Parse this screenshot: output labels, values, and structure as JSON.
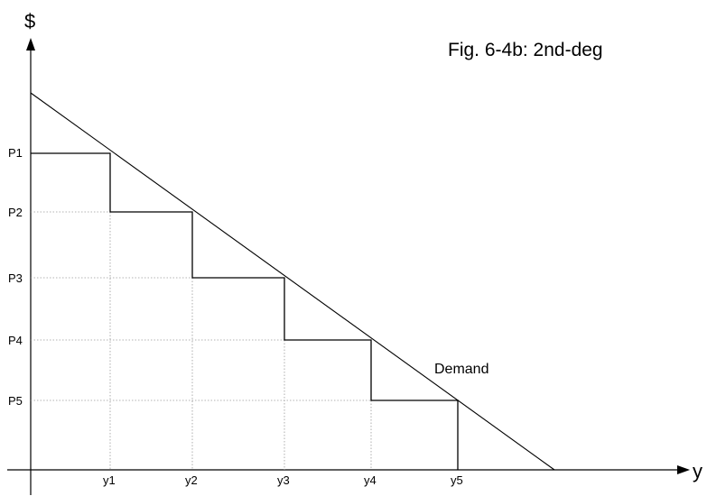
{
  "title": "Fig. 6-4b: 2nd-deg",
  "axes": {
    "y_label": "$",
    "x_label": "y"
  },
  "demand_label": "Demand",
  "prices": [
    "P1",
    "P2",
    "P3",
    "P4",
    "P5"
  ],
  "quantities": [
    "y1",
    "y2",
    "y3",
    "y4",
    "y5"
  ],
  "colors": {
    "ink": "#000000",
    "guide": "#9a9a9a"
  }
}
